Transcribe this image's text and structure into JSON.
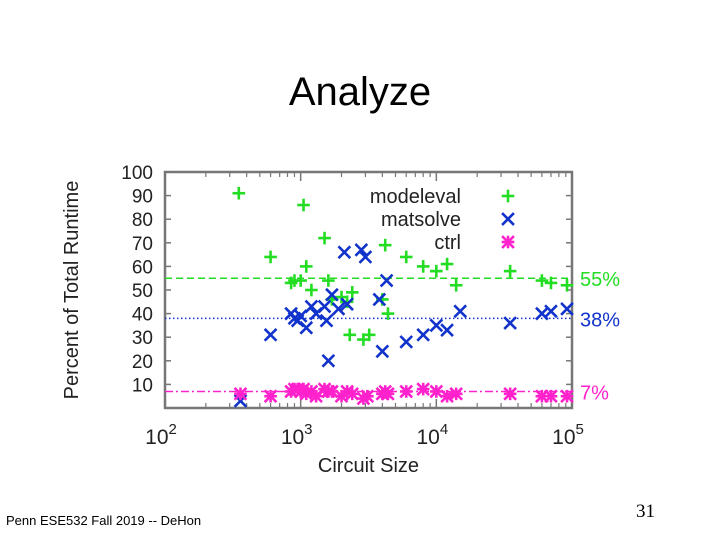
{
  "slide": {
    "title": "Analyze",
    "footer": "Penn ESE532 Fall 2019 -- DeHon",
    "page_number": "31"
  },
  "chart_data": {
    "type": "scatter",
    "xscale": "log",
    "xlim": [
      100,
      100000
    ],
    "ylim": [
      0,
      100
    ],
    "xlabel": "Circuit Size",
    "ylabel": "Percent of Total Runtime",
    "x_ticks": [
      {
        "value": 100,
        "base": "10",
        "exp": "2"
      },
      {
        "value": 1000,
        "base": "10",
        "exp": "3"
      },
      {
        "value": 10000,
        "base": "10",
        "exp": "4"
      },
      {
        "value": 100000,
        "base": "10",
        "exp": "5"
      }
    ],
    "y_ticks": [
      10,
      20,
      30,
      40,
      50,
      60,
      70,
      80,
      90,
      100
    ],
    "series": [
      {
        "name": "modeleval",
        "marker": "plus",
        "color": "#22dd22",
        "mean": 55,
        "mean_label": "55%",
        "points": [
          [
            350,
            91
          ],
          [
            600,
            64
          ],
          [
            850,
            53
          ],
          [
            900,
            54
          ],
          [
            1000,
            54
          ],
          [
            1050,
            86
          ],
          [
            1100,
            60
          ],
          [
            1200,
            50
          ],
          [
            1500,
            72
          ],
          [
            1600,
            54
          ],
          [
            1700,
            46
          ],
          [
            2000,
            47
          ],
          [
            2200,
            45
          ],
          [
            2300,
            31
          ],
          [
            2400,
            49
          ],
          [
            2900,
            29
          ],
          [
            3200,
            31
          ],
          [
            4000,
            46
          ],
          [
            4200,
            69
          ],
          [
            4400,
            40
          ],
          [
            6000,
            64
          ],
          [
            8000,
            60
          ],
          [
            10000,
            58
          ],
          [
            12000,
            61
          ],
          [
            14000,
            52
          ],
          [
            35000,
            58
          ],
          [
            60000,
            54
          ],
          [
            70000,
            53
          ],
          [
            95000,
            52
          ]
        ]
      },
      {
        "name": "matsolve",
        "marker": "x",
        "color": "#1133cc",
        "mean": 38,
        "mean_label": "38%",
        "points": [
          [
            360,
            3
          ],
          [
            600,
            31
          ],
          [
            850,
            40
          ],
          [
            900,
            38
          ],
          [
            950,
            37
          ],
          [
            1000,
            39
          ],
          [
            1100,
            34
          ],
          [
            1200,
            43
          ],
          [
            1300,
            40
          ],
          [
            1500,
            43
          ],
          [
            1550,
            37
          ],
          [
            1600,
            20
          ],
          [
            1700,
            48
          ],
          [
            1900,
            42
          ],
          [
            2100,
            66
          ],
          [
            2200,
            44
          ],
          [
            2800,
            67
          ],
          [
            3000,
            64
          ],
          [
            3800,
            46
          ],
          [
            4000,
            24
          ],
          [
            4300,
            54
          ],
          [
            6000,
            28
          ],
          [
            8000,
            31
          ],
          [
            10000,
            35
          ],
          [
            12000,
            33
          ],
          [
            15000,
            41
          ],
          [
            35000,
            36
          ],
          [
            60000,
            40
          ],
          [
            70000,
            41
          ],
          [
            95000,
            42
          ]
        ]
      },
      {
        "name": "ctrl",
        "marker": "star",
        "color": "#ff22cc",
        "mean": 7,
        "mean_label": "7%",
        "points": [
          [
            360,
            6
          ],
          [
            600,
            5
          ],
          [
            850,
            7
          ],
          [
            900,
            8
          ],
          [
            950,
            8
          ],
          [
            1000,
            7
          ],
          [
            1050,
            8
          ],
          [
            1100,
            6
          ],
          [
            1200,
            7
          ],
          [
            1300,
            5
          ],
          [
            1500,
            8
          ],
          [
            1600,
            7
          ],
          [
            1700,
            7
          ],
          [
            2000,
            5
          ],
          [
            2200,
            7
          ],
          [
            2400,
            6
          ],
          [
            2900,
            4
          ],
          [
            3100,
            5
          ],
          [
            4000,
            6
          ],
          [
            4200,
            7
          ],
          [
            4400,
            6
          ],
          [
            6000,
            7
          ],
          [
            8000,
            8
          ],
          [
            10000,
            7
          ],
          [
            12000,
            5
          ],
          [
            14000,
            6
          ],
          [
            35000,
            6
          ],
          [
            60000,
            5
          ],
          [
            70000,
            5
          ],
          [
            95000,
            5
          ]
        ]
      }
    ]
  }
}
